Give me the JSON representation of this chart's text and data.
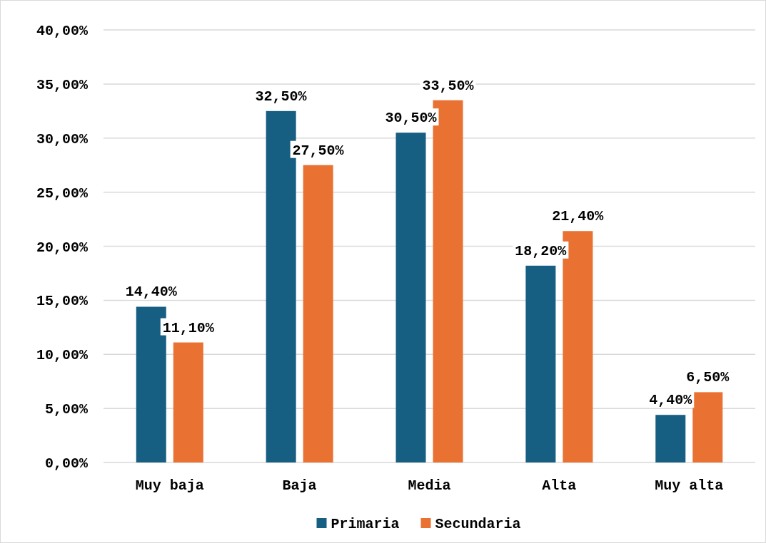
{
  "chart_data": {
    "type": "bar",
    "categories": [
      "Muy baja",
      "Baja",
      "Media",
      "Alta",
      "Muy alta"
    ],
    "series": [
      {
        "name": "Primaria",
        "color": "#175f82",
        "values": [
          14.4,
          32.5,
          30.5,
          18.2,
          4.4
        ],
        "value_labels": [
          "14,40%",
          "32,50%",
          "30,50%",
          "18,20%",
          "4,40%"
        ]
      },
      {
        "name": "Secundaria",
        "color": "#e97132",
        "values": [
          11.1,
          27.5,
          33.5,
          21.4,
          6.5
        ],
        "value_labels": [
          "11,10%",
          "27,50%",
          "33,50%",
          "21,40%",
          "6,50%"
        ]
      }
    ],
    "ylim": [
      0,
      40
    ],
    "yticks": [
      {
        "value": 0,
        "label": "0,00%"
      },
      {
        "value": 5,
        "label": "5,00%"
      },
      {
        "value": 10,
        "label": "10,00%"
      },
      {
        "value": 15,
        "label": "15,00%"
      },
      {
        "value": 20,
        "label": "20,00%"
      },
      {
        "value": 25,
        "label": "25,00%"
      },
      {
        "value": 30,
        "label": "30,00%"
      },
      {
        "value": 35,
        "label": "35,00%"
      },
      {
        "value": 40,
        "label": "40,00%"
      }
    ],
    "grid": "y",
    "legend": "bottom"
  }
}
